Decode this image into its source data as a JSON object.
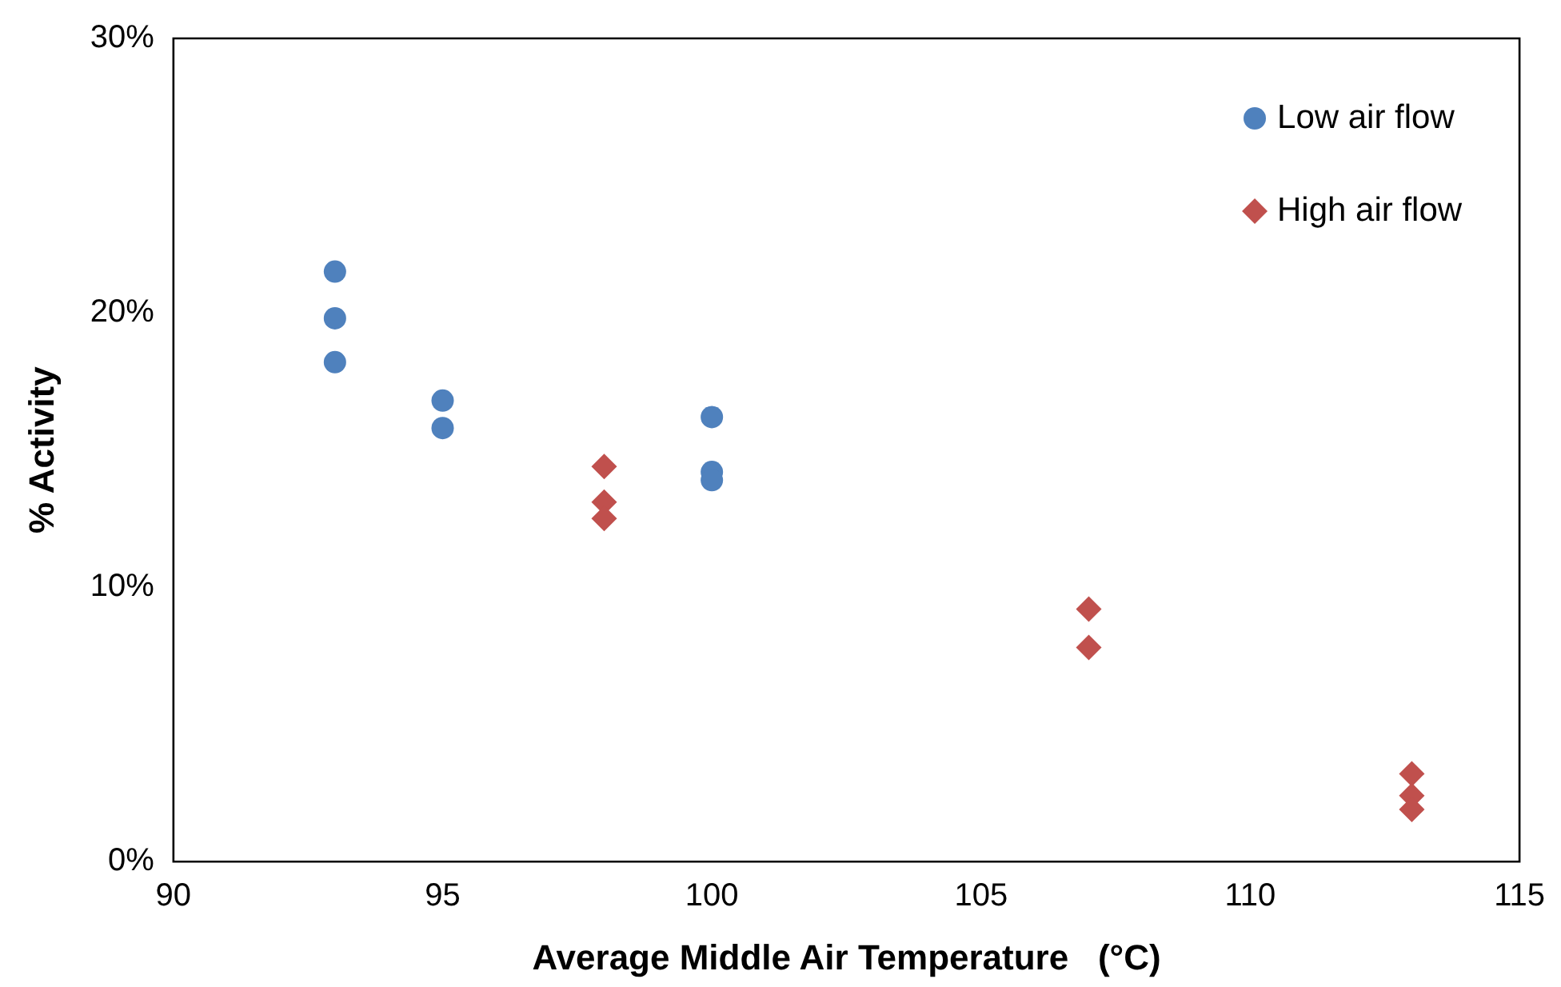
{
  "chart_data": {
    "type": "scatter",
    "xlabel": "Average Middle Air Temperature   (°C)",
    "ylabel": "% Activity",
    "xlim": [
      90,
      115
    ],
    "xticks": [
      90,
      95,
      100,
      105,
      110,
      115
    ],
    "ylim": [
      0,
      30
    ],
    "yticks": [
      {
        "value": 0,
        "label": "0%"
      },
      {
        "value": 10,
        "label": "10%"
      },
      {
        "value": 20,
        "label": "20%"
      },
      {
        "value": 30,
        "label": "30%"
      }
    ],
    "grid": false,
    "legend": "top right",
    "series": [
      {
        "name": "Low air flow",
        "color": "#4f81bd",
        "marker": "circle",
        "x": [
          93,
          93,
          93,
          95,
          95,
          100,
          100,
          100
        ],
        "values": [
          21.5,
          19.8,
          18.2,
          16.8,
          15.8,
          16.2,
          14.2,
          13.9
        ]
      },
      {
        "name": "High air flow",
        "color": "#c0504d",
        "marker": "diamond",
        "x": [
          98,
          98,
          98,
          107,
          107,
          113,
          113,
          113
        ],
        "values": [
          14.4,
          13.1,
          12.5,
          9.2,
          7.8,
          3.2,
          2.4,
          1.9
        ]
      }
    ]
  }
}
